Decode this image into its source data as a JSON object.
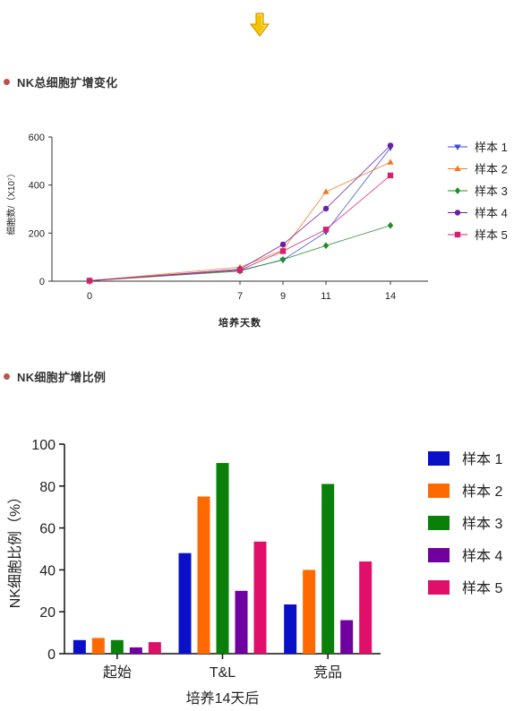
{
  "header": {
    "arrow_icon": "down-arrow-icon",
    "arrow_color": "#f5c400"
  },
  "sections": [
    {
      "title": "NK总细胞扩增变化"
    },
    {
      "title": "NK细胞扩增比例"
    }
  ],
  "chart_data": [
    {
      "type": "line",
      "title": "",
      "xlabel": "培养天数",
      "ylabel": "细胞数/（X10⁷）",
      "x": [
        0,
        7,
        9,
        11,
        14
      ],
      "xticks": [
        "0",
        "7",
        "9",
        "11",
        "14"
      ],
      "ylim": [
        0,
        600
      ],
      "yticks": [
        "0",
        "200",
        "400",
        "600"
      ],
      "legend_position": "right",
      "series": [
        {
          "name": "样本 1",
          "color": "#3b4bd6",
          "marker": "triangle-down",
          "values": [
            2,
            45,
            88,
            205,
            555
          ]
        },
        {
          "name": "样本 2",
          "color": "#f07820",
          "marker": "triangle-up",
          "values": [
            2,
            58,
            130,
            372,
            495
          ]
        },
        {
          "name": "样本 3",
          "color": "#1e8c2a",
          "marker": "diamond",
          "values": [
            2,
            42,
            90,
            148,
            232
          ]
        },
        {
          "name": "样本 4",
          "color": "#6a1fa8",
          "marker": "circle",
          "values": [
            2,
            50,
            153,
            302,
            565
          ]
        },
        {
          "name": "样本 5",
          "color": "#d4236e",
          "marker": "square",
          "values": [
            2,
            46,
            125,
            215,
            440
          ]
        }
      ]
    },
    {
      "type": "bar",
      "title": "",
      "xlabel": "培养14天后",
      "ylabel": "NK细胞比例（%）",
      "categories": [
        "起始",
        "T&L",
        "竞品"
      ],
      "ylim": [
        0,
        100
      ],
      "yticks": [
        "0",
        "20",
        "40",
        "60",
        "80",
        "100"
      ],
      "legend_position": "right",
      "series": [
        {
          "name": "样本 1",
          "color": "#0a10c8",
          "values": [
            6.5,
            48,
            23.5
          ]
        },
        {
          "name": "样本 2",
          "color": "#ff6a00",
          "values": [
            7.5,
            75,
            40
          ]
        },
        {
          "name": "样本 3",
          "color": "#0a800a",
          "values": [
            6.5,
            91,
            81
          ]
        },
        {
          "name": "样本 4",
          "color": "#7000a0",
          "values": [
            3,
            30,
            16
          ]
        },
        {
          "name": "样本 5",
          "color": "#e0106a",
          "values": [
            5.5,
            53.5,
            44
          ]
        }
      ]
    }
  ]
}
